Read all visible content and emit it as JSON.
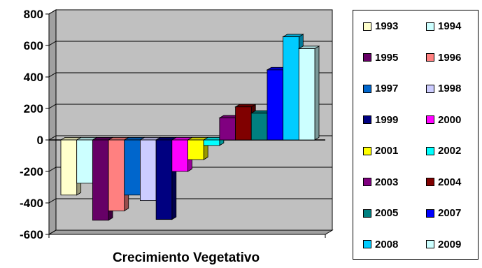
{
  "chart_data": {
    "type": "bar",
    "title": "",
    "xlabel": "Crecimiento Vegetativo",
    "ylabel": "",
    "ylim": [
      -600,
      800
    ],
    "yticks": [
      "800",
      "600",
      "400",
      "200",
      "0",
      "-200",
      "-400",
      "-600"
    ],
    "grid": true,
    "legend_position": "right",
    "plot_background": "#c0c0c0",
    "series": [
      {
        "name": "1993",
        "value": -350,
        "color": "#ffffcc"
      },
      {
        "name": "1994",
        "value": -275,
        "color": "#ccffff"
      },
      {
        "name": "1995",
        "value": -510,
        "color": "#660066"
      },
      {
        "name": "1996",
        "value": -450,
        "color": "#ff8080"
      },
      {
        "name": "1997",
        "value": -350,
        "color": "#0066cc"
      },
      {
        "name": "1998",
        "value": -385,
        "color": "#ccccff"
      },
      {
        "name": "1999",
        "value": -505,
        "color": "#000080"
      },
      {
        "name": "2000",
        "value": -200,
        "color": "#ff00ff"
      },
      {
        "name": "2001",
        "value": -125,
        "color": "#ffff00"
      },
      {
        "name": "2002",
        "value": -35,
        "color": "#00ffff"
      },
      {
        "name": "2003",
        "value": 140,
        "color": "#800080"
      },
      {
        "name": "2004",
        "value": 210,
        "color": "#800000"
      },
      {
        "name": "2005",
        "value": 170,
        "color": "#008080"
      },
      {
        "name": "2007",
        "value": 445,
        "color": "#0000ff"
      },
      {
        "name": "2008",
        "value": 655,
        "color": "#00ccff"
      },
      {
        "name": "2009",
        "value": 580,
        "color": "#ccffff"
      }
    ]
  }
}
